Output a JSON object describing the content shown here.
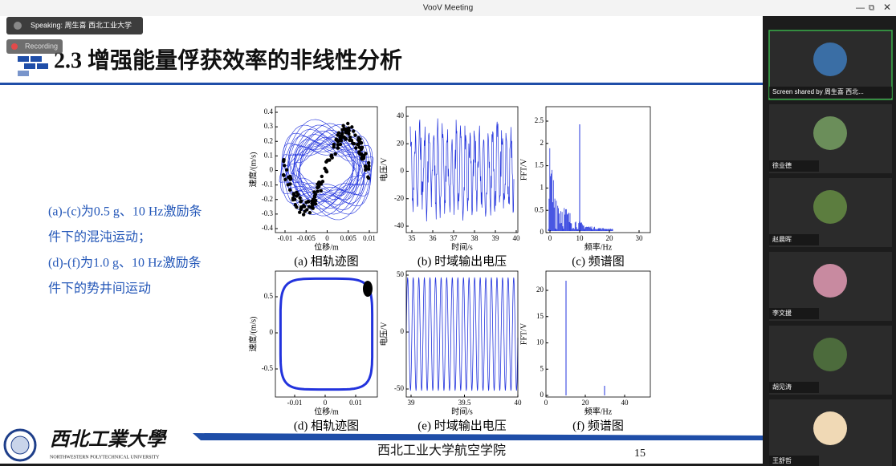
{
  "window": {
    "title": "VooV Meeting",
    "speaking": "Speaking: 周生喜 西北工业大学",
    "recording": "Recording"
  },
  "slide": {
    "title": "2.3 增强能量俘获效率的非线性分析",
    "notes": [
      "(a)-(c)为0.5 g、10 Hz激励条",
      "件下的混沌运动；",
      "(d)-(f)为1.0 g、10 Hz激励条",
      "件下的势井间运动"
    ],
    "panels": [
      {
        "caption": "(a) 相轨迹图",
        "xlabel": "位移/m",
        "ylabel": "速度/(m/s)",
        "xticks": [
          "-0.01",
          "-0.005",
          "0",
          "0.005",
          "0.01"
        ],
        "yticks": [
          "0.4",
          "0.3",
          "0.2",
          "0.1",
          "0",
          "-0.1",
          "-0.2",
          "-0.3",
          "-0.4"
        ]
      },
      {
        "caption": "(b) 时域输出电压",
        "xlabel": "时间/s",
        "ylabel": "电压/V",
        "xticks": [
          "35",
          "36",
          "37",
          "38",
          "39",
          "40"
        ],
        "yticks": [
          "40",
          "20",
          "0",
          "-20",
          "-40"
        ]
      },
      {
        "caption": "(c) 频谱图",
        "xlabel": "频率/Hz",
        "ylabel": "FFT/V",
        "xticks": [
          "0",
          "10",
          "20",
          "30"
        ],
        "yticks": [
          "2.5",
          "2",
          "1.5",
          "1",
          "0.5",
          "0"
        ]
      },
      {
        "caption": "(d) 相轨迹图",
        "xlabel": "位移/m",
        "ylabel": "速度/(m/s)",
        "xticks": [
          "-0.01",
          "0",
          "0.01"
        ],
        "yticks": [
          "0.5",
          "0",
          "-0.5"
        ]
      },
      {
        "caption": "(e) 时域输出电压",
        "xlabel": "时间/s",
        "ylabel": "电压/V",
        "xticks": [
          "39",
          "39.5",
          "40"
        ],
        "yticks": [
          "50",
          "0",
          "-50"
        ]
      },
      {
        "caption": "(f) 频谱图",
        "xlabel": "频率/Hz",
        "ylabel": "FFT/V",
        "xticks": [
          "0",
          "20",
          "40"
        ],
        "yticks": [
          "20",
          "15",
          "10",
          "5",
          "0"
        ]
      }
    ],
    "footer": {
      "school_cn": "西北工業大學",
      "school_en": "NORTHWESTERN POLYTECHNICAL UNIVERSITY",
      "college": "西北工业大学航空学院",
      "page": "15"
    }
  },
  "participants": [
    "Screen shared by 周生喜 西北...",
    "徐业德",
    "赵晨晖",
    "李文援",
    "胡见涛",
    "王舒哲"
  ]
}
